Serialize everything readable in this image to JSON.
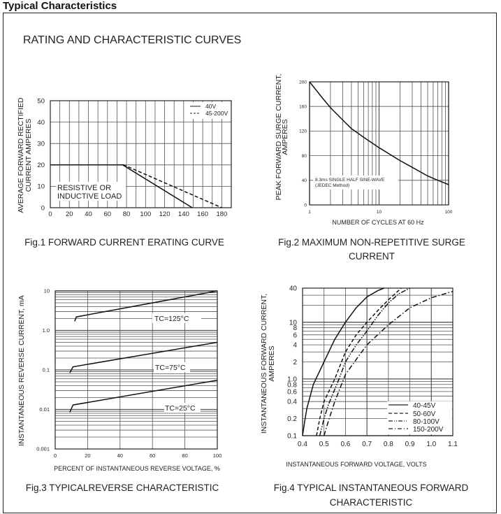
{
  "section_title": "Typical Characteristics",
  "heading": "RATING AND CHARACTERISTIC CURVES",
  "chart_data": [
    {
      "type": "line",
      "caption": "Fig.1 FORWARD CURRENT ERATING CURVE",
      "ylabel": [
        "AVERAGE FORWARD RECTIFIED",
        "CURRENT AMPERES"
      ],
      "xlabel": "",
      "xlim": [
        0,
        190
      ],
      "ylim": [
        0,
        50
      ],
      "xticks": [
        0,
        20,
        40,
        60,
        80,
        100,
        120,
        140,
        160,
        180
      ],
      "yticks": [
        0,
        10,
        20,
        30,
        40,
        50
      ],
      "grid": true,
      "legend": "top-right",
      "annotation": [
        "RESISTIVE OR",
        "INDUCTIVE LOAD"
      ],
      "series": [
        {
          "name": "40V",
          "style": "solid",
          "x": [
            0,
            76,
            149
          ],
          "y": [
            20,
            20,
            0
          ]
        },
        {
          "name": "45-200V",
          "style": "dashed",
          "x": [
            0,
            77,
            180
          ],
          "y": [
            20,
            20,
            0
          ]
        }
      ]
    },
    {
      "type": "line",
      "caption": [
        "Fig.2 MAXIMUM NON-REPETITIVE SURGE",
        "CURRENT"
      ],
      "ylabel": [
        "PEAK  FORWARD SURGE CURRENT,",
        "AMPERES"
      ],
      "xlabel": "NUMBER OF CYCLES AT 60 Hz",
      "xscale": "log",
      "xlim": [
        1,
        100
      ],
      "ylim": [
        0,
        200
      ],
      "xticks": [
        1,
        10,
        100
      ],
      "yticks": [
        0,
        40,
        80,
        120,
        160,
        200
      ],
      "grid": true,
      "annotation": [
        "8.3ms SINGLE HALF SINE-WAVE",
        "(JEDEC Method)"
      ],
      "series": [
        {
          "style": "solid",
          "x": [
            1,
            1.5,
            2,
            3,
            4,
            6,
            10,
            20,
            30,
            50,
            70,
            100
          ],
          "y": [
            200,
            175,
            158,
            138,
            124,
            110,
            93,
            72,
            61,
            47,
            40,
            33
          ]
        }
      ]
    },
    {
      "type": "line",
      "caption": "Fig.3 TYPICALREVERSE CHARACTERISTIC",
      "ylabel": [
        "INSTANTANEOUS REVERSE CURRENT, mA"
      ],
      "xlabel": "PERCENT OF INSTANTANEOUS REVERSE VOLTAGE, %",
      "yscale": "log",
      "xlim": [
        0,
        100
      ],
      "ylim": [
        0.001,
        10
      ],
      "xticks": [
        0,
        20,
        40,
        60,
        80,
        100
      ],
      "yticks": [
        0.001,
        0.01,
        0.1,
        1.0,
        10
      ],
      "ytick_labels": [
        "0.001",
        "0.01",
        "0.1",
        "1.0",
        "10"
      ],
      "grid": true,
      "series": [
        {
          "name": "TC=125°C",
          "style": "solid",
          "x": [
            12,
            13,
            100
          ],
          "y": [
            1.7,
            2.2,
            10
          ]
        },
        {
          "name": "TC=75°C",
          "style": "solid",
          "x": [
            9,
            11,
            100
          ],
          "y": [
            0.085,
            0.12,
            0.5
          ]
        },
        {
          "name": "TC=25°C",
          "style": "solid",
          "x": [
            9,
            11,
            100
          ],
          "y": [
            0.0085,
            0.013,
            0.055
          ]
        }
      ]
    },
    {
      "type": "line",
      "caption": [
        "Fig.4 TYPICAL INSTANTANEOUS FORWARD",
        "CHARACTERISTIC"
      ],
      "ylabel": [
        "INSTANTANEOUS FORWARD CURRENT,",
        "AMPERES"
      ],
      "xlabel": "INSTANTANEOUS FORWARD VOLTAGE, VOLTS",
      "yscale": "log",
      "xlim": [
        0.4,
        1.1
      ],
      "ylim": [
        0.1,
        40
      ],
      "xticks": [
        0.4,
        0.5,
        0.6,
        0.7,
        0.8,
        0.9,
        1.0,
        1.1
      ],
      "xtick_labels": [
        "0.4",
        "0.5",
        "0.6",
        "0.7",
        "0.8",
        "0.9",
        "1.0",
        "1.1"
      ],
      "yticks": [
        0.1,
        0.2,
        0.4,
        0.6,
        0.8,
        1.0,
        2,
        4,
        6,
        8,
        10,
        40
      ],
      "ytick_labels": [
        "0.1",
        "0.2",
        "0.4",
        "0.6",
        "0.8",
        "1.0",
        "2",
        "4",
        "6",
        "8",
        "10",
        "40"
      ],
      "grid": true,
      "legend": "bottom-right",
      "series": [
        {
          "name": "40-45V",
          "style": "solid",
          "x": [
            0.4,
            0.41,
            0.42,
            0.45,
            0.5,
            0.55,
            0.6,
            0.65,
            0.7,
            0.75,
            0.78
          ],
          "y": [
            0.1,
            0.18,
            0.3,
            0.8,
            2,
            5,
            10,
            18,
            28,
            36,
            40
          ]
        },
        {
          "name": "50-60V",
          "style": "dashed",
          "x": [
            0.465,
            0.48,
            0.5,
            0.55,
            0.6,
            0.65,
            0.7,
            0.75,
            0.8,
            0.86
          ],
          "y": [
            0.1,
            0.2,
            0.4,
            1,
            3,
            6,
            10,
            16,
            25,
            40
          ]
        },
        {
          "name": "80-100V",
          "style": "dash-dot-dot",
          "x": [
            0.48,
            0.5,
            0.52,
            0.57,
            0.6,
            0.65,
            0.7,
            0.75,
            0.8,
            0.85,
            0.9
          ],
          "y": [
            0.1,
            0.2,
            0.35,
            1,
            2,
            4,
            7,
            13,
            22,
            32,
            40
          ]
        },
        {
          "name": "150-200V",
          "style": "dash-dot",
          "x": [
            0.5,
            0.52,
            0.55,
            0.6,
            0.65,
            0.7,
            0.75,
            0.8,
            0.9,
            1.0,
            1.1
          ],
          "y": [
            0.1,
            0.18,
            0.4,
            1.2,
            2.2,
            4,
            6,
            9,
            18,
            27,
            35
          ]
        }
      ]
    }
  ]
}
